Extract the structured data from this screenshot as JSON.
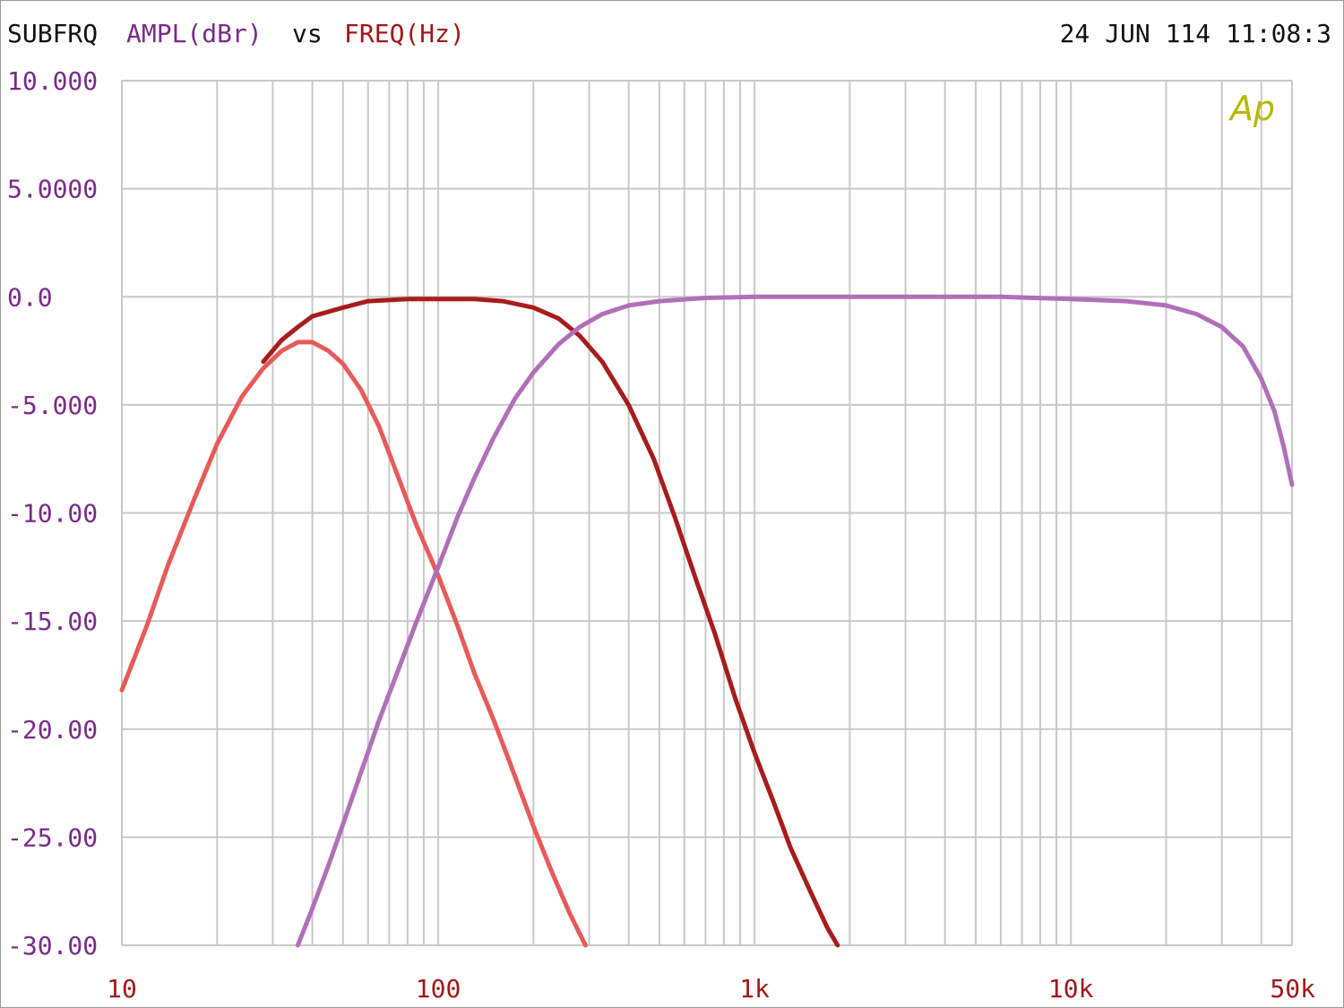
{
  "header": {
    "prefix": "SUBFRQ",
    "y_quantity": "AMPL(dBr)",
    "vs": "vs",
    "x_quantity": "FREQ(Hz)",
    "timestamp": "24 JUN 114 11:08:3"
  },
  "logo_text": "Ap",
  "colors": {
    "background": "#ffffff",
    "grid": "#c8c8c8",
    "header_text": "#111111",
    "y_label": "#7a2a8a",
    "x_label": "#a01818",
    "logo": "#b8b800"
  },
  "chart_data": {
    "type": "line",
    "x_scale": "log",
    "xlim": [
      10,
      50000
    ],
    "ylim": [
      -30,
      10
    ],
    "grid": true,
    "x_ticks": [
      {
        "value": 10,
        "label": "10"
      },
      {
        "value": 100,
        "label": "100"
      },
      {
        "value": 1000,
        "label": "1k"
      },
      {
        "value": 10000,
        "label": "10k"
      },
      {
        "value": 50000,
        "label": "50k"
      }
    ],
    "y_ticks": [
      {
        "value": 10,
        "label": "10.000"
      },
      {
        "value": 5,
        "label": "5.0000"
      },
      {
        "value": 0,
        "label": "0.0"
      },
      {
        "value": -5,
        "label": "-5.000"
      },
      {
        "value": -10,
        "label": "-10.00"
      },
      {
        "value": -15,
        "label": "-15.00"
      },
      {
        "value": -20,
        "label": "-20.00"
      },
      {
        "value": -25,
        "label": "-25.00"
      },
      {
        "value": -30,
        "label": "-30.00"
      }
    ],
    "series": [
      {
        "color": "#e85a5a",
        "points": [
          [
            10,
            -18.2
          ],
          [
            12,
            -15.2
          ],
          [
            14,
            -12.4
          ],
          [
            17,
            -9.3
          ],
          [
            20,
            -6.8
          ],
          [
            24,
            -4.6
          ],
          [
            28,
            -3.3
          ],
          [
            32,
            -2.5
          ],
          [
            36,
            -2.1
          ],
          [
            40,
            -2.1
          ],
          [
            45,
            -2.5
          ],
          [
            50,
            -3.1
          ],
          [
            57,
            -4.3
          ],
          [
            65,
            -6.0
          ],
          [
            75,
            -8.4
          ],
          [
            85,
            -10.5
          ],
          [
            100,
            -12.9
          ],
          [
            115,
            -15.2
          ],
          [
            130,
            -17.4
          ],
          [
            150,
            -19.6
          ],
          [
            170,
            -21.7
          ],
          [
            200,
            -24.5
          ],
          [
            230,
            -26.7
          ],
          [
            260,
            -28.5
          ],
          [
            292,
            -30.0
          ]
        ]
      },
      {
        "color": "#a81c1c",
        "points": [
          [
            28,
            -3.0
          ],
          [
            32,
            -2.0
          ],
          [
            36,
            -1.4
          ],
          [
            40,
            -0.9
          ],
          [
            50,
            -0.5
          ],
          [
            60,
            -0.2
          ],
          [
            80,
            -0.1
          ],
          [
            100,
            -0.1
          ],
          [
            130,
            -0.1
          ],
          [
            160,
            -0.2
          ],
          [
            200,
            -0.5
          ],
          [
            240,
            -1.0
          ],
          [
            280,
            -1.8
          ],
          [
            330,
            -3.0
          ],
          [
            400,
            -5.0
          ],
          [
            480,
            -7.5
          ],
          [
            560,
            -10.2
          ],
          [
            650,
            -13.0
          ],
          [
            750,
            -15.6
          ],
          [
            870,
            -18.6
          ],
          [
            1000,
            -21.1
          ],
          [
            1150,
            -23.4
          ],
          [
            1300,
            -25.5
          ],
          [
            1500,
            -27.5
          ],
          [
            1700,
            -29.2
          ],
          [
            1830,
            -30.0
          ]
        ]
      },
      {
        "color": "#b070b8",
        "points": [
          [
            36,
            -30.0
          ],
          [
            40,
            -28.3
          ],
          [
            45,
            -26.3
          ],
          [
            50,
            -24.4
          ],
          [
            57,
            -22.0
          ],
          [
            65,
            -19.6
          ],
          [
            75,
            -17.2
          ],
          [
            85,
            -15.1
          ],
          [
            100,
            -12.5
          ],
          [
            115,
            -10.2
          ],
          [
            130,
            -8.4
          ],
          [
            150,
            -6.5
          ],
          [
            175,
            -4.7
          ],
          [
            200,
            -3.5
          ],
          [
            240,
            -2.2
          ],
          [
            280,
            -1.4
          ],
          [
            330,
            -0.8
          ],
          [
            400,
            -0.4
          ],
          [
            500,
            -0.2
          ],
          [
            700,
            -0.05
          ],
          [
            1000,
            0.0
          ],
          [
            3000,
            0.0
          ],
          [
            6000,
            0.0
          ],
          [
            10000,
            -0.1
          ],
          [
            15000,
            -0.2
          ],
          [
            20000,
            -0.4
          ],
          [
            25000,
            -0.8
          ],
          [
            30000,
            -1.4
          ],
          [
            35000,
            -2.3
          ],
          [
            40000,
            -3.8
          ],
          [
            44000,
            -5.3
          ],
          [
            47000,
            -6.9
          ],
          [
            50000,
            -8.7
          ]
        ]
      }
    ]
  }
}
